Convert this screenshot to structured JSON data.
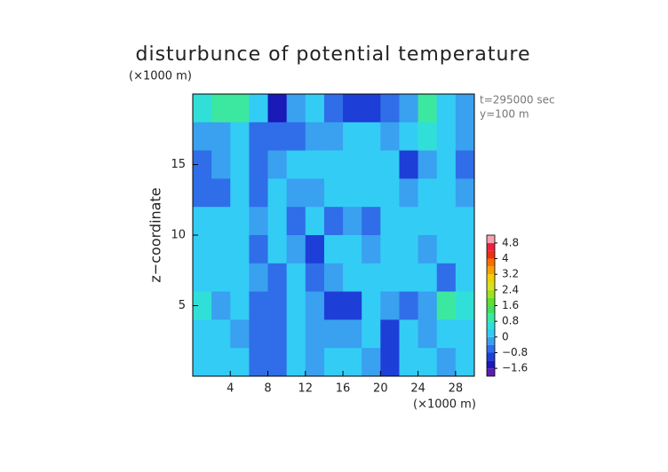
{
  "chart_data": {
    "type": "contour",
    "title": "disturbunce of potential temperature",
    "x_unit": "(×1000 m)",
    "y_unit": "(×1000 m)",
    "y_label": "z−coordinate",
    "annotations": [
      "t=295000 sec",
      "y=100 m"
    ],
    "xlim": [
      0,
      30
    ],
    "ylim": [
      0,
      20
    ],
    "xticks": [
      4,
      8,
      12,
      16,
      20,
      24,
      28
    ],
    "yticks": [
      5,
      10,
      15
    ],
    "x": [
      1,
      3,
      5,
      7,
      9,
      11,
      13,
      15,
      17,
      19,
      21,
      23,
      25,
      27,
      29
    ],
    "y": [
      19,
      17,
      15,
      13,
      11,
      9,
      7,
      5,
      3,
      1
    ],
    "z": [
      [
        0.4,
        0.8,
        0.8,
        0.2,
        -1.6,
        -0.4,
        0.2,
        -0.8,
        -1.2,
        -1.2,
        -0.8,
        -0.4,
        0.8,
        0.2,
        -0.4
      ],
      [
        -0.4,
        -0.4,
        0.2,
        -0.8,
        -0.8,
        -0.8,
        -0.4,
        -0.4,
        0.2,
        0.2,
        -0.4,
        0.2,
        0.4,
        0,
        -0.4
      ],
      [
        -0.8,
        -0.4,
        0.2,
        -0.8,
        -0.4,
        0,
        0,
        0.2,
        0.2,
        0.2,
        0,
        -1.2,
        -0.4,
        0.2,
        -0.8
      ],
      [
        -0.8,
        -0.8,
        0,
        -0.8,
        0,
        -0.4,
        -0.4,
        0,
        0,
        0,
        0.2,
        -0.4,
        0,
        0.2,
        -0.4
      ],
      [
        0,
        0,
        0,
        -0.4,
        0,
        -0.8,
        0,
        -0.8,
        -0.4,
        -0.8,
        0,
        0,
        0.2,
        0,
        0
      ],
      [
        0,
        0.2,
        0,
        -0.8,
        0,
        -0.4,
        -1.2,
        0,
        0,
        -0.4,
        0,
        0,
        -0.4,
        0,
        0
      ],
      [
        0,
        0,
        0,
        -0.4,
        -0.8,
        0,
        -0.8,
        -0.4,
        0,
        0,
        0,
        0,
        0,
        -0.8,
        0
      ],
      [
        0.4,
        -0.4,
        0,
        -0.8,
        -0.8,
        0,
        -0.4,
        -1.2,
        -1.2,
        0,
        -0.4,
        -0.8,
        -0.4,
        0.8,
        0.4
      ],
      [
        0,
        0,
        -0.4,
        -0.8,
        -0.8,
        0,
        -0.4,
        -0.4,
        -0.4,
        0,
        -1.2,
        0,
        -0.4,
        0,
        0
      ],
      [
        0,
        0,
        0,
        -0.8,
        -0.8,
        0,
        -0.4,
        0,
        0,
        -0.4,
        -1.2,
        0,
        0,
        -0.4,
        0
      ]
    ],
    "colorbar": {
      "levels": [
        -2,
        -1.6,
        -1.2,
        -0.8,
        -0.4,
        0,
        0.4,
        0.8,
        1.2,
        1.6,
        2,
        2.4,
        2.8,
        3.2,
        3.6,
        4,
        4.4,
        4.8,
        5.2
      ],
      "colors": [
        "#5a1fb0",
        "#1a1ab8",
        "#1e3ed8",
        "#2f6ee8",
        "#3aa0f0",
        "#33ccf5",
        "#30e0d8",
        "#3ce8a0",
        "#40e060",
        "#60e030",
        "#a0e020",
        "#d8e020",
        "#f0d000",
        "#f8a000",
        "#f87000",
        "#f03010",
        "#f02040",
        "#f8a0b0"
      ],
      "ticks": [
        4.8,
        4,
        3.2,
        2.4,
        1.6,
        0.8,
        0,
        {
          "value": -0.8,
          "label": "−0.8"
        },
        {
          "value": -1.6,
          "label": "−1.6"
        }
      ]
    }
  }
}
